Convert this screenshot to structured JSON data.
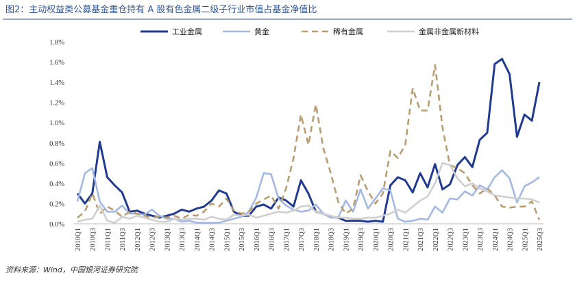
{
  "chart_data": {
    "type": "line",
    "title": "图2：主动权益类公募基金重仓持有 A 股有色金属二级子行业市值占基金净值比",
    "source": "资料来源：Wind，中国银河证券研究院",
    "categories": [
      "2010Q1",
      null,
      "2010Q3",
      null,
      "2011Q1",
      null,
      "2011Q3",
      null,
      "2012Q1",
      null,
      "2012Q3",
      null,
      "2013Q1",
      null,
      "2013Q3",
      null,
      "2014Q1",
      null,
      "2014Q3",
      null,
      "2015Q1",
      null,
      "2015Q3",
      null,
      "2016Q1",
      null,
      "2016Q3",
      null,
      "2017Q1",
      null,
      "2017Q3",
      null,
      "2018Q1",
      null,
      "2018Q3",
      null,
      "2019Q1",
      null,
      "2019Q3",
      null,
      "2020Q1",
      null,
      "2020Q3",
      null,
      "2021Q1",
      null,
      "2021Q3",
      null,
      "2022Q1",
      null,
      "2022Q3",
      null,
      "2023Q1",
      null,
      "2023Q3",
      null,
      "2024Q1",
      null,
      "2024Q3",
      null,
      "2025Q1",
      null,
      "2025Q3"
    ],
    "series": [
      {
        "name": "工业金属",
        "color": "#1f3a8f",
        "line_style": "solid",
        "values": [
          0.3,
          0.2,
          0.3,
          0.81,
          0.46,
          0.38,
          0.31,
          0.12,
          0.13,
          0.1,
          0.08,
          0.06,
          0.08,
          0.1,
          0.14,
          0.12,
          0.15,
          0.17,
          0.23,
          0.33,
          0.3,
          0.12,
          0.08,
          0.08,
          0.17,
          0.19,
          0.15,
          0.26,
          0.23,
          0.17,
          0.43,
          0.3,
          0.12,
          0.1,
          0.07,
          0.06,
          0.03,
          0.03,
          0.03,
          0.02,
          0.03,
          0.02,
          0.38,
          0.46,
          0.43,
          0.31,
          0.5,
          0.36,
          0.59,
          0.34,
          0.39,
          0.58,
          0.66,
          0.56,
          0.83,
          0.9,
          1.58,
          1.63,
          1.48,
          0.86,
          1.08,
          1.02,
          1.4
        ]
      },
      {
        "name": "黄金",
        "color": "#a3b8e3",
        "line_style": "solid",
        "values": [
          0.22,
          0.5,
          0.55,
          0.22,
          0.12,
          0.12,
          0.18,
          0.1,
          0.1,
          0.09,
          0.14,
          0.08,
          0.05,
          0.05,
          0.02,
          0.03,
          0.01,
          0.01,
          0.01,
          0.01,
          0.03,
          0.05,
          0.07,
          0.12,
          0.26,
          0.5,
          0.49,
          0.25,
          0.18,
          0.14,
          0.12,
          0.13,
          0.19,
          0.1,
          0.06,
          0.06,
          0.23,
          0.12,
          0.34,
          0.15,
          0.25,
          0.35,
          0.33,
          0.05,
          0.02,
          0.03,
          0.05,
          0.04,
          0.17,
          0.11,
          0.25,
          0.24,
          0.32,
          0.28,
          0.38,
          0.34,
          0.46,
          0.53,
          0.45,
          0.21,
          0.37,
          0.41,
          0.46
        ]
      },
      {
        "name": "稀有金属",
        "color": "#b99c70",
        "line_style": "dashed",
        "values": [
          0.06,
          0.12,
          0.3,
          0.1,
          0.17,
          0.13,
          0.07,
          0.12,
          0.1,
          0.08,
          0.06,
          0.07,
          0.06,
          0.08,
          0.05,
          0.09,
          0.08,
          0.12,
          0.2,
          0.17,
          0.25,
          0.13,
          0.1,
          0.12,
          0.2,
          0.24,
          0.28,
          0.15,
          0.35,
          0.65,
          1.08,
          0.78,
          1.18,
          0.75,
          0.5,
          0.22,
          0.1,
          0.15,
          0.48,
          0.32,
          0.2,
          0.3,
          0.72,
          0.65,
          0.78,
          1.34,
          1.12,
          1.12,
          1.57,
          0.95,
          0.58,
          0.55,
          0.5,
          0.38,
          0.3,
          0.35,
          0.28,
          0.17,
          0.16,
          0.17,
          0.17,
          0.22,
          0.04
        ]
      },
      {
        "name": "金属非金属新材料",
        "color": "#cfcfcf",
        "line_style": "solid",
        "values": [
          0.02,
          0.04,
          0.05,
          0.18,
          0.03,
          0.01,
          0.07,
          0.05,
          0.08,
          0.06,
          0.04,
          0.02,
          0.02,
          0.05,
          0.04,
          0.05,
          0.05,
          0.04,
          0.07,
          0.05,
          0.04,
          0.09,
          0.08,
          0.09,
          0.06,
          0.08,
          0.1,
          0.12,
          0.11,
          0.13,
          0.17,
          0.18,
          0.12,
          0.1,
          0.08,
          0.06,
          0.06,
          0.05,
          0.05,
          0.06,
          0.06,
          0.08,
          0.1,
          0.14,
          0.11,
          0.17,
          0.23,
          0.27,
          0.4,
          0.6,
          0.58,
          0.45,
          0.37,
          0.4,
          0.35,
          0.32,
          0.28,
          0.27,
          0.26,
          0.25,
          0.25,
          0.24,
          0.21
        ]
      }
    ],
    "ylim": [
      0,
      1.8
    ],
    "yticks": [
      {
        "value": 0,
        "label": "0.0%"
      },
      {
        "value": 0.2,
        "label": "0.2%"
      },
      {
        "value": 0.4,
        "label": "0.4%"
      },
      {
        "value": 0.6,
        "label": "0.6%"
      },
      {
        "value": 0.8,
        "label": "0.8%"
      },
      {
        "value": 1.0,
        "label": "1.0%"
      },
      {
        "value": 1.2,
        "label": "1.2%"
      },
      {
        "value": 1.4,
        "label": "1.4%"
      },
      {
        "value": 1.6,
        "label": "1.6%"
      },
      {
        "value": 1.8,
        "label": "1.8%"
      }
    ],
    "legend": "top"
  }
}
